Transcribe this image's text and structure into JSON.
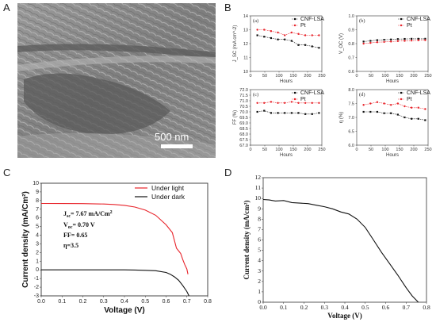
{
  "panels": {
    "a": "A",
    "b": "B",
    "c": "C",
    "d": "D"
  },
  "micrograph": {
    "scale_bar_label": "500 nm"
  },
  "chart_data": [
    {
      "id": "b-a",
      "type": "line",
      "subplot_label": "(a)",
      "xlabel": "Hours",
      "ylabel": "J_SC (mA cm^-2)",
      "xlim": [
        0,
        250
      ],
      "ylim": [
        10,
        14
      ],
      "xticks": [
        0,
        50,
        100,
        150,
        200,
        250
      ],
      "yticks": [
        10,
        11,
        12,
        13,
        14
      ],
      "x": [
        24,
        48,
        72,
        96,
        120,
        144,
        168,
        192,
        216,
        240
      ],
      "series": [
        {
          "name": "CNF-LSA",
          "color": "#111111",
          "marker": "square",
          "values": [
            12.6,
            12.5,
            12.4,
            12.3,
            12.3,
            12.2,
            11.9,
            11.9,
            11.8,
            11.7
          ]
        },
        {
          "name": "Pt",
          "color": "#e8232a",
          "marker": "circle",
          "values": [
            13.0,
            13.0,
            12.9,
            12.8,
            12.6,
            12.8,
            12.7,
            12.6,
            12.6,
            12.6
          ]
        }
      ]
    },
    {
      "id": "b-b",
      "type": "line",
      "subplot_label": "(b)",
      "xlabel": "Hours",
      "ylabel": "V_OC (V)",
      "xlim": [
        0,
        250
      ],
      "ylim": [
        0.6,
        1.0
      ],
      "xticks": [
        0,
        50,
        100,
        150,
        200,
        250
      ],
      "yticks": [
        0.6,
        0.7,
        0.8,
        0.9,
        1.0
      ],
      "x": [
        24,
        48,
        72,
        96,
        120,
        144,
        168,
        192,
        216,
        240
      ],
      "series": [
        {
          "name": "CNF-LSA",
          "color": "#111111",
          "marker": "square",
          "values": [
            0.815,
            0.82,
            0.825,
            0.828,
            0.83,
            0.833,
            0.834,
            0.835,
            0.835,
            0.835
          ]
        },
        {
          "name": "Pt",
          "color": "#e8232a",
          "marker": "circle",
          "values": [
            0.8,
            0.805,
            0.81,
            0.812,
            0.815,
            0.818,
            0.82,
            0.822,
            0.824,
            0.825
          ]
        }
      ]
    },
    {
      "id": "b-c",
      "type": "line",
      "subplot_label": "(c)",
      "xlabel": "Hours",
      "ylabel": "FF (%)",
      "xlim": [
        0,
        250
      ],
      "ylim": [
        67.0,
        72.0
      ],
      "xticks": [
        0,
        50,
        100,
        150,
        200,
        250
      ],
      "yticks": [
        67.0,
        67.5,
        68.0,
        68.5,
        69.0,
        69.5,
        70.0,
        70.5,
        71.0,
        71.5,
        72.0
      ],
      "x": [
        24,
        48,
        72,
        96,
        120,
        144,
        168,
        192,
        216,
        240
      ],
      "series": [
        {
          "name": "CNF-LSA",
          "color": "#111111",
          "marker": "square",
          "values": [
            70.0,
            70.1,
            69.9,
            69.9,
            69.9,
            69.9,
            69.9,
            69.8,
            69.8,
            69.9
          ]
        },
        {
          "name": "Pt",
          "color": "#e8232a",
          "marker": "circle",
          "values": [
            70.8,
            70.8,
            70.9,
            70.8,
            70.8,
            70.9,
            70.8,
            70.8,
            70.8,
            70.8
          ]
        }
      ]
    },
    {
      "id": "b-d",
      "type": "line",
      "subplot_label": "(d)",
      "xlabel": "Hours",
      "ylabel": "η (%)",
      "xlim": [
        0,
        250
      ],
      "ylim": [
        6.0,
        8.0
      ],
      "xticks": [
        0,
        50,
        100,
        150,
        200,
        250
      ],
      "yticks": [
        6.0,
        6.5,
        7.0,
        7.5,
        8.0
      ],
      "x": [
        24,
        48,
        72,
        96,
        120,
        144,
        168,
        192,
        216,
        240
      ],
      "series": [
        {
          "name": "CNF-LSA",
          "color": "#111111",
          "marker": "square",
          "values": [
            7.2,
            7.2,
            7.2,
            7.15,
            7.15,
            7.1,
            7.0,
            6.95,
            6.95,
            6.9
          ]
        },
        {
          "name": "Pt",
          "color": "#e8232a",
          "marker": "circle",
          "values": [
            7.45,
            7.5,
            7.55,
            7.5,
            7.45,
            7.5,
            7.4,
            7.35,
            7.35,
            7.3
          ]
        }
      ]
    },
    {
      "id": "c",
      "type": "line",
      "xlabel": "Voltage (V)",
      "ylabel": "Current density (mA/Cm²)",
      "xlim": [
        0,
        0.8
      ],
      "ylim": [
        -3,
        10
      ],
      "xticks": [
        0.0,
        0.1,
        0.2,
        0.3,
        0.4,
        0.5,
        0.6,
        0.7,
        0.8
      ],
      "yticks": [
        -3,
        -2,
        -1,
        0,
        1,
        2,
        3,
        4,
        5,
        6,
        7,
        8,
        9,
        10
      ],
      "series": [
        {
          "name": "Under light",
          "color": "#e8232a",
          "x": [
            0.0,
            0.1,
            0.2,
            0.3,
            0.35,
            0.4,
            0.45,
            0.5,
            0.55,
            0.6,
            0.63,
            0.65,
            0.67,
            0.68,
            0.69,
            0.7,
            0.705
          ],
          "values": [
            7.67,
            7.66,
            7.65,
            7.6,
            7.55,
            7.45,
            7.25,
            6.9,
            6.3,
            5.2,
            4.3,
            2.5,
            1.9,
            1.2,
            0.6,
            0.1,
            -0.5
          ]
        },
        {
          "name": "Under dark",
          "color": "#111111",
          "x": [
            0.0,
            0.1,
            0.2,
            0.3,
            0.4,
            0.45,
            0.5,
            0.55,
            0.6,
            0.62,
            0.64,
            0.66,
            0.68,
            0.7,
            0.71
          ],
          "values": [
            0.0,
            0.0,
            0.0,
            0.0,
            0.0,
            -0.02,
            -0.05,
            -0.1,
            -0.3,
            -0.5,
            -0.8,
            -1.2,
            -1.8,
            -2.5,
            -3.0
          ]
        }
      ],
      "annotations": {
        "jsc": "J<sub>sc</sub>= 7.67 mA/Cm<sup>2</sup>",
        "jsc_main": "J",
        "jsc_sub": "sc",
        "jsc_rest": "= 7.67 mA/Cm",
        "jsc_sup": "2",
        "voc_main": "V",
        "voc_sub": "oc",
        "voc_rest": "= 0.70 V",
        "ff": "FF= 0.65",
        "eta": "η=3.5"
      }
    },
    {
      "id": "d",
      "type": "line",
      "xlabel": "Voltage (V)",
      "ylabel": "Current density (mA/cm²)",
      "xlim": [
        0,
        0.8
      ],
      "ylim": [
        0,
        12
      ],
      "xticks": [
        0.0,
        0.1,
        0.2,
        0.3,
        0.4,
        0.5,
        0.6,
        0.7,
        0.8
      ],
      "yticks": [
        0,
        1,
        2,
        3,
        4,
        5,
        6,
        7,
        8,
        9,
        10,
        11,
        12
      ],
      "series": [
        {
          "color": "#111111",
          "x": [
            0.0,
            0.03,
            0.06,
            0.1,
            0.14,
            0.18,
            0.22,
            0.26,
            0.3,
            0.34,
            0.38,
            0.42,
            0.46,
            0.5,
            0.54,
            0.58,
            0.62,
            0.66,
            0.7,
            0.73,
            0.76
          ],
          "values": [
            9.9,
            9.85,
            9.75,
            9.8,
            9.6,
            9.55,
            9.5,
            9.35,
            9.2,
            9.0,
            8.7,
            8.5,
            8.0,
            7.2,
            6.0,
            4.8,
            3.7,
            2.6,
            1.4,
            0.6,
            0.0
          ]
        }
      ]
    }
  ]
}
